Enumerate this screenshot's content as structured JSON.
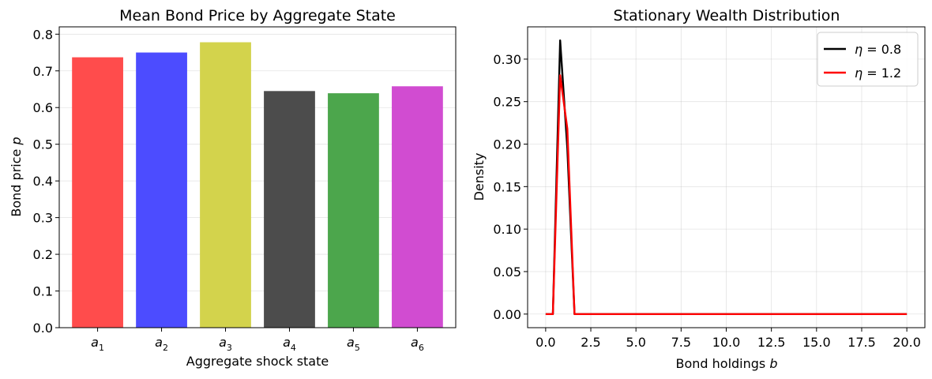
{
  "chart_data": [
    {
      "type": "bar",
      "title": "Mean Bond Price by Aggregate State",
      "xlabel": "Aggregate shock state",
      "ylabel": "Bond price",
      "ylabel_var": "p",
      "categories": [
        {
          "base": "a",
          "sub": "1"
        },
        {
          "base": "a",
          "sub": "2"
        },
        {
          "base": "a",
          "sub": "3"
        },
        {
          "base": "a",
          "sub": "4"
        },
        {
          "base": "a",
          "sub": "5"
        },
        {
          "base": "a",
          "sub": "6"
        }
      ],
      "values": [
        0.737,
        0.75,
        0.778,
        0.645,
        0.639,
        0.658
      ],
      "colors": [
        "#ff4c4c",
        "#4c4cff",
        "#d3d34c",
        "#4c4c4c",
        "#4ca64c",
        "#d14cd1"
      ],
      "ylim": [
        0,
        0.82
      ],
      "yticks": [
        "0.0",
        "0.1",
        "0.2",
        "0.3",
        "0.4",
        "0.5",
        "0.6",
        "0.7",
        "0.8"
      ],
      "grid": "y"
    },
    {
      "type": "line",
      "title": "Stationary Wealth Distribution",
      "xlabel": "Bond holdings",
      "xlabel_var": "b",
      "ylabel": "Density",
      "xlim": [
        -1.0,
        21.0
      ],
      "ylim": [
        -0.016,
        0.338
      ],
      "xticks": [
        "0.0",
        "2.5",
        "5.0",
        "7.5",
        "10.0",
        "12.5",
        "15.0",
        "17.5",
        "20.0"
      ],
      "yticks": [
        "0.00",
        "0.05",
        "0.10",
        "0.15",
        "0.20",
        "0.25",
        "0.30"
      ],
      "grid": "both",
      "legend_position": "top-right",
      "series": [
        {
          "legend_var": "η",
          "legend_value": "= 0.8",
          "color": "#000000",
          "x": [
            0.0,
            0.4,
            0.8,
            1.2,
            1.6,
            20.0
          ],
          "y": [
            0.0,
            0.0,
            0.322,
            0.195,
            0.0,
            0.0
          ]
        },
        {
          "legend_var": "η",
          "legend_value": "= 1.2",
          "color": "#ff0000",
          "x": [
            0.0,
            0.4,
            0.8,
            1.2,
            1.6,
            20.0
          ],
          "y": [
            0.0,
            0.0,
            0.281,
            0.218,
            0.0,
            0.0
          ]
        }
      ]
    }
  ]
}
